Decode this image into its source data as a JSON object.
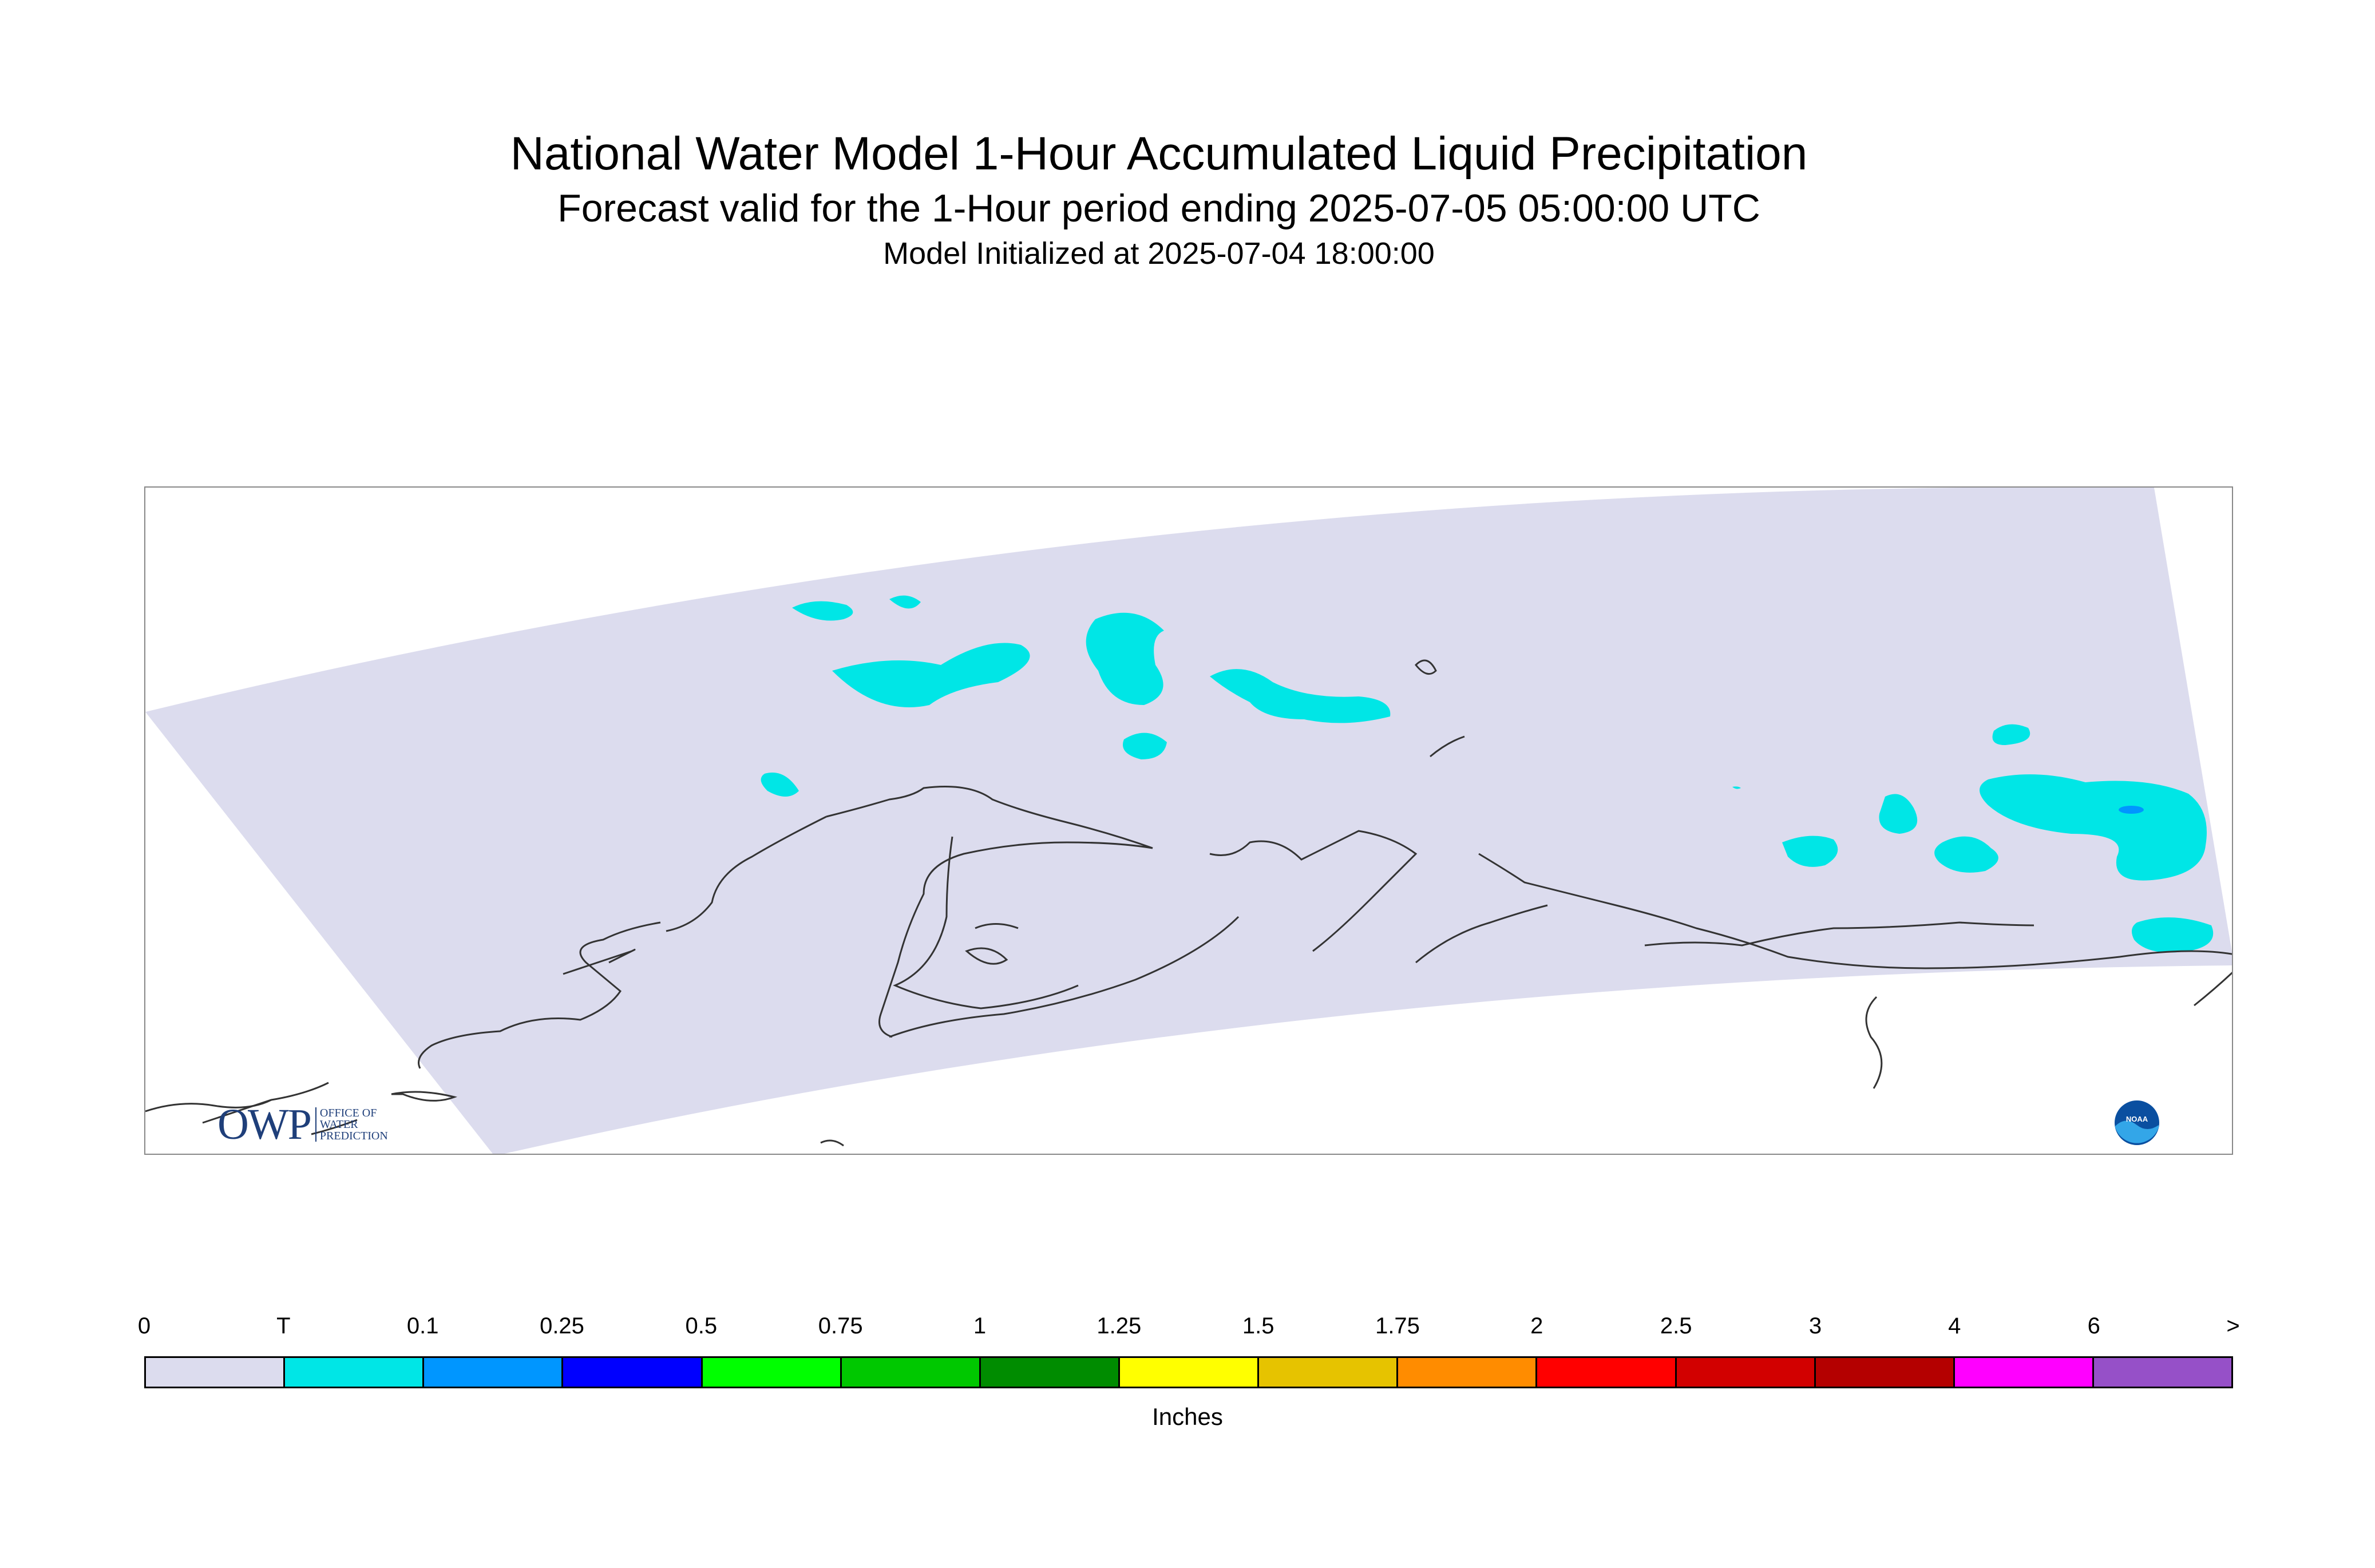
{
  "titles": {
    "main": "National Water Model 1-Hour Accumulated Liquid Precipitation",
    "forecast": "Forecast valid for the 1-Hour period ending 2025-07-05 05:00:00 UTC",
    "init": "Model Initialized at 2025-07-04 18:00:00"
  },
  "map": {
    "domain_color": "#dcdcee",
    "trace_color": "#00e6e6",
    "light_rain_color": "#0096ff",
    "coastline_color": "#000000"
  },
  "logos": {
    "owp_mark": "OWP",
    "owp_text_1": "Office of",
    "owp_text_2": "Water",
    "owp_text_3": "Prediction",
    "noaa_text": "NOAA"
  },
  "legend": {
    "labels": [
      "0",
      "T",
      "0.1",
      "0.25",
      "0.5",
      "0.75",
      "1",
      "1.25",
      "1.5",
      "1.75",
      "2",
      "2.5",
      "3",
      "4",
      "6",
      ">"
    ],
    "colors": [
      "#dcdcee",
      "#00e6e6",
      "#0096ff",
      "#0000ff",
      "#00ff00",
      "#00c800",
      "#008c00",
      "#ffff00",
      "#e6c300",
      "#ff8c00",
      "#ff0000",
      "#d20000",
      "#b40000",
      "#ff00ff",
      "#9650c8"
    ],
    "units": "Inches"
  }
}
